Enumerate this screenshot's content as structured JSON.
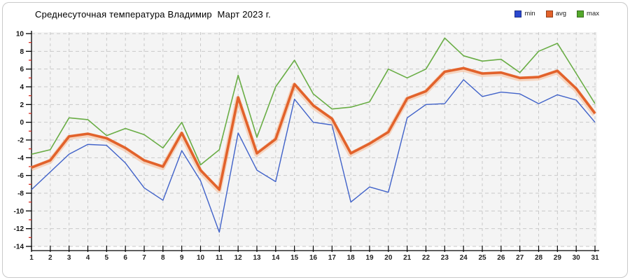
{
  "title": "Среднесуточная температура Владимир  Март 2023 г.",
  "legend": [
    {
      "name": "min",
      "label": "min",
      "color": "#2b48cf"
    },
    {
      "name": "avg",
      "label": "avg",
      "color": "#e2622b"
    },
    {
      "name": "max",
      "label": "max",
      "color": "#53a82b"
    }
  ],
  "colors": {
    "plot_background": "#f4f4f4",
    "gridline": "#c9c9c9",
    "axis": "#000000",
    "minor_tick": "#d42a1e",
    "avg_halo": "#f5b993"
  },
  "chart_data": {
    "type": "line",
    "title": "Среднесуточная температура Владимир  Март 2023 г.",
    "xlabel": "",
    "ylabel": "",
    "x": [
      1,
      2,
      3,
      4,
      5,
      6,
      7,
      8,
      9,
      10,
      11,
      12,
      13,
      14,
      15,
      16,
      17,
      18,
      19,
      20,
      21,
      22,
      23,
      24,
      25,
      26,
      27,
      28,
      29,
      30,
      31
    ],
    "xticks": [
      1,
      2,
      3,
      4,
      5,
      6,
      7,
      8,
      9,
      10,
      11,
      12,
      13,
      14,
      15,
      16,
      17,
      18,
      19,
      20,
      21,
      22,
      23,
      24,
      25,
      26,
      27,
      28,
      29,
      30,
      31
    ],
    "yticks": [
      10,
      8,
      6,
      4,
      2,
      0,
      -2,
      -4,
      -6,
      -8,
      -10,
      -12,
      -14
    ],
    "ylim": [
      -14,
      10
    ],
    "grid": true,
    "legend_position": "top-right",
    "series": [
      {
        "name": "min",
        "color": "#4062c9",
        "values": [
          -7.6,
          -5.6,
          -3.6,
          -2.5,
          -2.6,
          -4.6,
          -7.4,
          -8.8,
          -3.2,
          -6.6,
          -12.4,
          -1.2,
          -5.4,
          -6.7,
          2.6,
          0.0,
          -0.3,
          -9.0,
          -7.3,
          -7.9,
          0.5,
          2.0,
          2.1,
          4.8,
          2.9,
          3.4,
          3.2,
          2.1,
          3.1,
          2.5,
          0.0
        ]
      },
      {
        "name": "avg",
        "color": "#e2622b",
        "values": [
          -5.1,
          -4.3,
          -1.6,
          -1.3,
          -1.8,
          -2.9,
          -4.3,
          -5.0,
          -1.2,
          -5.4,
          -7.6,
          2.8,
          -3.5,
          -1.9,
          4.3,
          1.9,
          0.4,
          -3.5,
          -2.4,
          -1.1,
          2.7,
          3.5,
          5.7,
          6.1,
          5.5,
          5.6,
          5.0,
          5.1,
          5.8,
          3.8,
          1.0
        ]
      },
      {
        "name": "max",
        "color": "#69ad45",
        "values": [
          -3.6,
          -3.1,
          0.5,
          0.3,
          -1.5,
          -0.7,
          -1.4,
          -2.9,
          0.0,
          -4.8,
          -3.1,
          5.3,
          -1.7,
          4.0,
          7.0,
          3.2,
          1.5,
          1.7,
          2.3,
          6.0,
          5.0,
          6.0,
          9.5,
          7.5,
          6.9,
          7.1,
          5.6,
          8.0,
          8.9,
          5.5,
          2.1
        ]
      }
    ]
  }
}
